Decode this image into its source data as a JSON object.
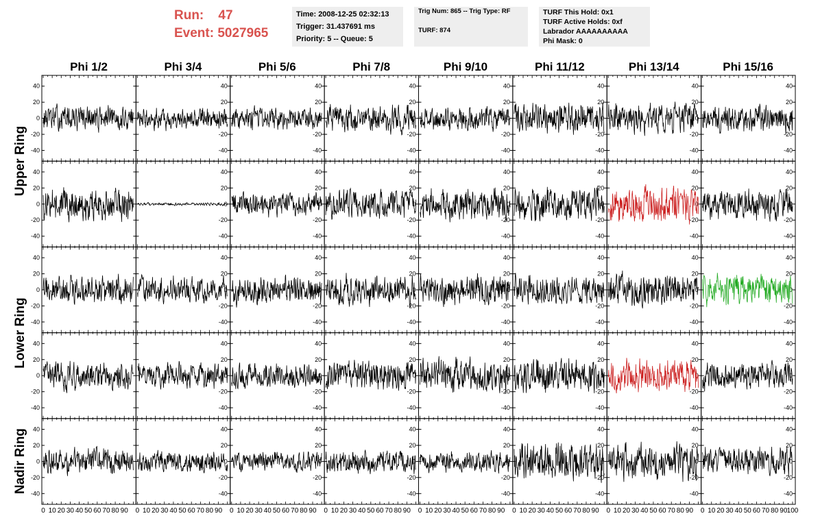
{
  "run": {
    "run_label": "Run:",
    "run_number": "47",
    "event_label": "Event:",
    "event_number": "5027965"
  },
  "info_time": {
    "line1": "Time: 2008-12-25 02:32:13",
    "line2": "Trigger: 31.437691 ms",
    "line3": "Priority: 5 -- Queue: 5"
  },
  "info_trig": {
    "line1": "Trig Num: 865 -- Trig Type: RF",
    "line2": "TURF: 874"
  },
  "info_turf": {
    "line1": "TURF This Hold: 0x1",
    "line2": "TURF Active Holds: 0xf",
    "line3": "Labrador AAAAAAAAAA",
    "line4": "Phi Mask: 0"
  },
  "columns": [
    "Phi 1/2",
    "Phi 3/4",
    "Phi 5/6",
    "Phi 7/8",
    "Phi 9/10",
    "Phi 11/12",
    "Phi 13/14",
    "Phi 15/16"
  ],
  "rows": [
    "Upper Ring",
    "Upper Ring",
    "Lower Ring",
    "Lower Ring",
    "Nadir Ring"
  ],
  "ring_labels": [
    {
      "text": "Upper Ring",
      "rows": [
        0,
        1
      ]
    },
    {
      "text": "Lower Ring",
      "rows": [
        2,
        3
      ]
    },
    {
      "text": "Nadir Ring",
      "rows": [
        4
      ]
    }
  ],
  "colors": {
    "trace": "#000000",
    "highlight_red": "#cc2222",
    "highlight_green": "#22aa22",
    "title_red": "#d9534f",
    "info_bg": "#eeeeee"
  },
  "chart_data": {
    "type": "line",
    "title": "",
    "xlabel": "",
    "ylabel": "",
    "xlim": [
      0,
      100
    ],
    "ylim": [
      -50,
      50
    ],
    "x_ticks": [
      "0",
      "10",
      "20",
      "30",
      "40",
      "50",
      "60",
      "70",
      "80",
      "90",
      "100"
    ],
    "y_ticks": [
      "40",
      "20",
      "0",
      "-20",
      "-40"
    ],
    "panels": [
      {
        "row": 0,
        "col": 0,
        "amplitude": 18,
        "color": "black"
      },
      {
        "row": 0,
        "col": 1,
        "amplitude": 16,
        "color": "black"
      },
      {
        "row": 0,
        "col": 2,
        "amplitude": 16,
        "color": "black"
      },
      {
        "row": 0,
        "col": 3,
        "amplitude": 20,
        "color": "black"
      },
      {
        "row": 0,
        "col": 4,
        "amplitude": 18,
        "color": "black"
      },
      {
        "row": 0,
        "col": 5,
        "amplitude": 22,
        "color": "black"
      },
      {
        "row": 0,
        "col": 6,
        "amplitude": 22,
        "color": "black"
      },
      {
        "row": 0,
        "col": 7,
        "amplitude": 20,
        "color": "black"
      },
      {
        "row": 1,
        "col": 0,
        "amplitude": 24,
        "color": "black"
      },
      {
        "row": 1,
        "col": 1,
        "amplitude": 2,
        "color": "black"
      },
      {
        "row": 1,
        "col": 2,
        "amplitude": 18,
        "color": "black"
      },
      {
        "row": 1,
        "col": 3,
        "amplitude": 22,
        "color": "black"
      },
      {
        "row": 1,
        "col": 4,
        "amplitude": 24,
        "color": "black"
      },
      {
        "row": 1,
        "col": 5,
        "amplitude": 24,
        "color": "black"
      },
      {
        "row": 1,
        "col": 6,
        "amplitude": 26,
        "color": "red"
      },
      {
        "row": 1,
        "col": 7,
        "amplitude": 22,
        "color": "black"
      },
      {
        "row": 2,
        "col": 0,
        "amplitude": 20,
        "color": "black"
      },
      {
        "row": 2,
        "col": 1,
        "amplitude": 18,
        "color": "black"
      },
      {
        "row": 2,
        "col": 2,
        "amplitude": 22,
        "color": "black"
      },
      {
        "row": 2,
        "col": 3,
        "amplitude": 22,
        "color": "black"
      },
      {
        "row": 2,
        "col": 4,
        "amplitude": 22,
        "color": "black"
      },
      {
        "row": 2,
        "col": 5,
        "amplitude": 20,
        "color": "black"
      },
      {
        "row": 2,
        "col": 6,
        "amplitude": 24,
        "color": "black"
      },
      {
        "row": 2,
        "col": 7,
        "amplitude": 22,
        "color": "green"
      },
      {
        "row": 3,
        "col": 0,
        "amplitude": 20,
        "color": "black"
      },
      {
        "row": 3,
        "col": 1,
        "amplitude": 18,
        "color": "black"
      },
      {
        "row": 3,
        "col": 2,
        "amplitude": 18,
        "color": "black"
      },
      {
        "row": 3,
        "col": 3,
        "amplitude": 22,
        "color": "black"
      },
      {
        "row": 3,
        "col": 4,
        "amplitude": 24,
        "color": "black"
      },
      {
        "row": 3,
        "col": 5,
        "amplitude": 26,
        "color": "black"
      },
      {
        "row": 3,
        "col": 6,
        "amplitude": 24,
        "color": "red"
      },
      {
        "row": 3,
        "col": 7,
        "amplitude": 20,
        "color": "black"
      },
      {
        "row": 4,
        "col": 0,
        "amplitude": 18,
        "color": "black"
      },
      {
        "row": 4,
        "col": 1,
        "amplitude": 16,
        "color": "black"
      },
      {
        "row": 4,
        "col": 2,
        "amplitude": 14,
        "color": "black"
      },
      {
        "row": 4,
        "col": 3,
        "amplitude": 18,
        "color": "black"
      },
      {
        "row": 4,
        "col": 4,
        "amplitude": 16,
        "color": "black"
      },
      {
        "row": 4,
        "col": 5,
        "amplitude": 28,
        "color": "black"
      },
      {
        "row": 4,
        "col": 6,
        "amplitude": 26,
        "color": "black"
      },
      {
        "row": 4,
        "col": 7,
        "amplitude": 20,
        "color": "black"
      }
    ]
  }
}
